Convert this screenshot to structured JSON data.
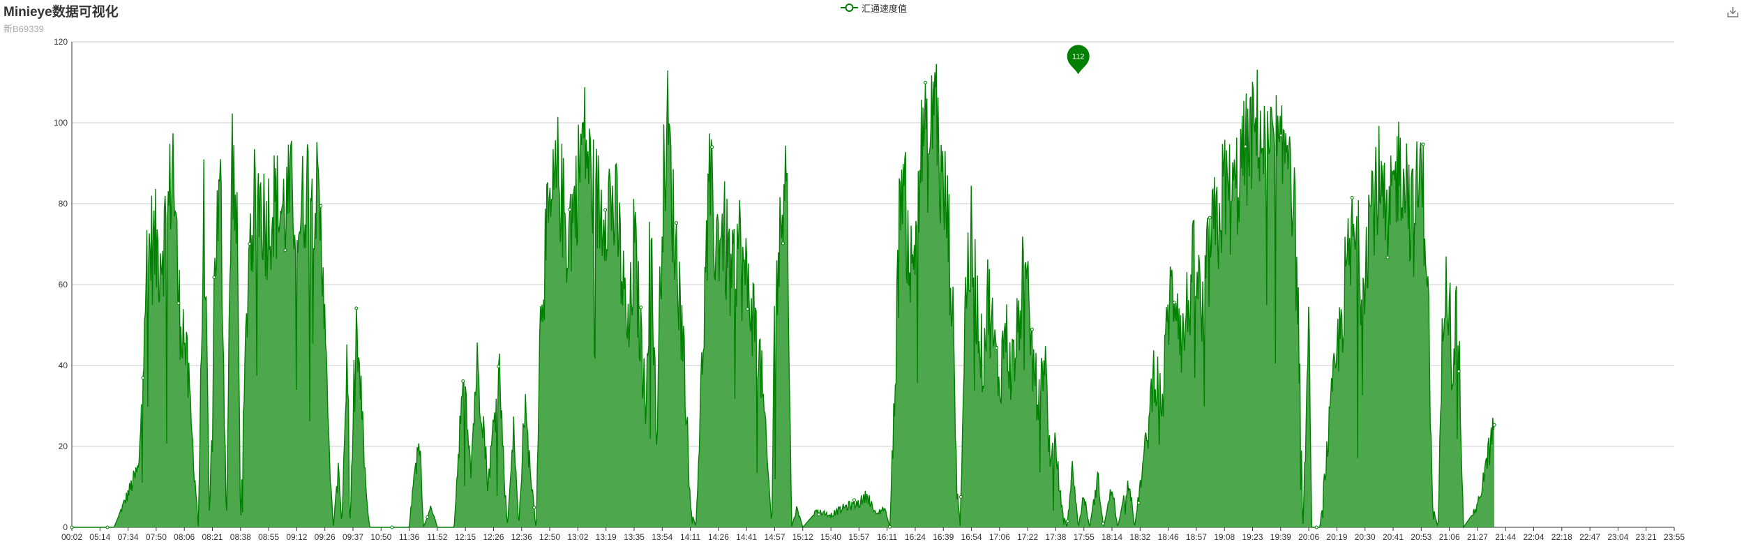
{
  "header": {
    "title": "Minieye数据可视化",
    "subtitle": "新B69339"
  },
  "legend": {
    "label": "汇通速度值"
  },
  "toolbox": {
    "icon": "download-icon"
  },
  "colors": {
    "series": "#008000",
    "area": "#4da74d",
    "grid": "#cccccc",
    "axis": "#333333"
  },
  "chart_data": {
    "type": "area",
    "title": "Minieye数据可视化",
    "subtitle": "新B69339",
    "series_name": "汇通速度值",
    "ylim": [
      0,
      120
    ],
    "y_ticks": [
      0,
      20,
      40,
      60,
      80,
      100,
      120
    ],
    "x_labels": [
      "00:02",
      "05:14",
      "07:34",
      "07:50",
      "08:06",
      "08:21",
      "08:38",
      "08:55",
      "09:12",
      "09:26",
      "09:37",
      "10:50",
      "11:36",
      "11:52",
      "12:15",
      "12:26",
      "12:36",
      "12:50",
      "13:02",
      "13:19",
      "13:35",
      "13:54",
      "14:11",
      "14:26",
      "14:41",
      "14:57",
      "15:12",
      "15:40",
      "15:57",
      "16:11",
      "16:24",
      "16:39",
      "16:54",
      "17:06",
      "17:22",
      "17:38",
      "17:55",
      "18:14",
      "18:32",
      "18:46",
      "18:57",
      "19:08",
      "19:23",
      "19:39",
      "20:06",
      "20:19",
      "20:30",
      "20:41",
      "20:53",
      "21:06",
      "21:27",
      "21:44",
      "22:04",
      "22:18",
      "22:47",
      "23:04",
      "23:21",
      "23:55"
    ],
    "max_point": {
      "label": "112",
      "value": 112,
      "x_label": "17:55"
    },
    "profile": [
      [
        0.0,
        0
      ],
      [
        1.5,
        0
      ],
      [
        2.4,
        15
      ],
      [
        2.6,
        60
      ],
      [
        2.8,
        70
      ],
      [
        3.1,
        68
      ],
      [
        3.4,
        75
      ],
      [
        3.6,
        92
      ],
      [
        3.8,
        55
      ],
      [
        4.0,
        48
      ],
      [
        4.2,
        30
      ],
      [
        4.4,
        10
      ],
      [
        4.5,
        0
      ],
      [
        4.7,
        80
      ],
      [
        4.9,
        0
      ],
      [
        5.1,
        70
      ],
      [
        5.3,
        82
      ],
      [
        5.5,
        0
      ],
      [
        5.7,
        95
      ],
      [
        5.9,
        65
      ],
      [
        6.0,
        0
      ],
      [
        6.3,
        70
      ],
      [
        6.6,
        84
      ],
      [
        6.9,
        75
      ],
      [
        7.2,
        80
      ],
      [
        7.5,
        78
      ],
      [
        7.8,
        82
      ],
      [
        8.1,
        75
      ],
      [
        8.4,
        86
      ],
      [
        8.7,
        82
      ],
      [
        9.0,
        60
      ],
      [
        9.1,
        25
      ],
      [
        9.3,
        0
      ],
      [
        9.5,
        15
      ],
      [
        9.6,
        0
      ],
      [
        9.8,
        45
      ],
      [
        9.9,
        0
      ],
      [
        10.1,
        50
      ],
      [
        10.3,
        30
      ],
      [
        10.5,
        5
      ],
      [
        10.6,
        0
      ],
      [
        11.2,
        0
      ],
      [
        12.0,
        0
      ],
      [
        12.2,
        15
      ],
      [
        12.4,
        20
      ],
      [
        12.5,
        0
      ],
      [
        12.8,
        5
      ],
      [
        13.0,
        0
      ],
      [
        13.6,
        0
      ],
      [
        13.8,
        25
      ],
      [
        14.0,
        35
      ],
      [
        14.2,
        15
      ],
      [
        14.4,
        40
      ],
      [
        14.6,
        30
      ],
      [
        14.8,
        10
      ],
      [
        15.0,
        25
      ],
      [
        15.2,
        40
      ],
      [
        15.4,
        10
      ],
      [
        15.5,
        0
      ],
      [
        15.7,
        25
      ],
      [
        15.9,
        0
      ],
      [
        16.1,
        30
      ],
      [
        16.3,
        15
      ],
      [
        16.5,
        0
      ],
      [
        16.7,
        60
      ],
      [
        17.0,
        75
      ],
      [
        17.3,
        88
      ],
      [
        17.6,
        72
      ],
      [
        17.9,
        80
      ],
      [
        18.2,
        98
      ],
      [
        18.5,
        85
      ],
      [
        18.8,
        78
      ],
      [
        19.1,
        82
      ],
      [
        19.4,
        75
      ],
      [
        19.6,
        60
      ],
      [
        19.8,
        45
      ],
      [
        20.0,
        70
      ],
      [
        20.2,
        50
      ],
      [
        20.4,
        30
      ],
      [
        20.6,
        75
      ],
      [
        20.8,
        20
      ],
      [
        21.0,
        80
      ],
      [
        21.2,
        100
      ],
      [
        21.4,
        75
      ],
      [
        21.6,
        60
      ],
      [
        21.8,
        40
      ],
      [
        22.0,
        5
      ],
      [
        22.2,
        0
      ],
      [
        22.5,
        55
      ],
      [
        22.7,
        85
      ],
      [
        22.9,
        70
      ],
      [
        23.1,
        75
      ],
      [
        23.3,
        68
      ],
      [
        23.5,
        60
      ],
      [
        23.7,
        72
      ],
      [
        23.9,
        62
      ],
      [
        24.1,
        58
      ],
      [
        24.3,
        50
      ],
      [
        24.5,
        40
      ],
      [
        24.7,
        20
      ],
      [
        24.9,
        0
      ],
      [
        25.0,
        55
      ],
      [
        25.2,
        70
      ],
      [
        25.4,
        100
      ],
      [
        25.6,
        0
      ],
      [
        25.8,
        5
      ],
      [
        26.0,
        0
      ],
      [
        26.5,
        4
      ],
      [
        27.0,
        3
      ],
      [
        27.5,
        5
      ],
      [
        28.0,
        6
      ],
      [
        28.3,
        8
      ],
      [
        28.6,
        3
      ],
      [
        28.9,
        5
      ],
      [
        29.1,
        0
      ],
      [
        29.3,
        40
      ],
      [
        29.5,
        90
      ],
      [
        29.7,
        75
      ],
      [
        29.9,
        60
      ],
      [
        30.1,
        85
      ],
      [
        30.3,
        98
      ],
      [
        30.5,
        90
      ],
      [
        30.7,
        112
      ],
      [
        30.9,
        85
      ],
      [
        31.1,
        80
      ],
      [
        31.3,
        60
      ],
      [
        31.5,
        10
      ],
      [
        31.6,
        0
      ],
      [
        31.8,
        60
      ],
      [
        32.0,
        70
      ],
      [
        32.2,
        55
      ],
      [
        32.4,
        40
      ],
      [
        32.6,
        58
      ],
      [
        32.8,
        45
      ],
      [
        33.0,
        35
      ],
      [
        33.2,
        50
      ],
      [
        33.4,
        38
      ],
      [
        33.6,
        45
      ],
      [
        33.8,
        60
      ],
      [
        34.0,
        55
      ],
      [
        34.2,
        40
      ],
      [
        34.4,
        30
      ],
      [
        34.6,
        45
      ],
      [
        34.8,
        15
      ],
      [
        35.0,
        20
      ],
      [
        35.2,
        5
      ],
      [
        35.4,
        0
      ],
      [
        35.6,
        15
      ],
      [
        35.8,
        0
      ],
      [
        36.0,
        8
      ],
      [
        36.2,
        0
      ],
      [
        36.5,
        12
      ],
      [
        36.7,
        0
      ],
      [
        37.0,
        10
      ],
      [
        37.2,
        0
      ],
      [
        37.6,
        12
      ],
      [
        37.8,
        0
      ],
      [
        38.1,
        15
      ],
      [
        38.3,
        25
      ],
      [
        38.5,
        40
      ],
      [
        38.8,
        30
      ],
      [
        39.0,
        55
      ],
      [
        39.3,
        60
      ],
      [
        39.5,
        45
      ],
      [
        39.8,
        60
      ],
      [
        40.0,
        65
      ],
      [
        40.2,
        50
      ],
      [
        40.5,
        70
      ],
      [
        40.8,
        75
      ],
      [
        41.0,
        85
      ],
      [
        41.3,
        80
      ],
      [
        41.6,
        90
      ],
      [
        41.9,
        95
      ],
      [
        42.2,
        100
      ],
      [
        42.5,
        90
      ],
      [
        42.8,
        96
      ],
      [
        43.0,
        88
      ],
      [
        43.3,
        100
      ],
      [
        43.6,
        60
      ],
      [
        43.8,
        0
      ],
      [
        44.0,
        50
      ],
      [
        44.1,
        0
      ],
      [
        44.4,
        0
      ],
      [
        44.8,
        30
      ],
      [
        45.0,
        42
      ],
      [
        45.3,
        60
      ],
      [
        45.6,
        72
      ],
      [
        45.9,
        62
      ],
      [
        46.2,
        80
      ],
      [
        46.5,
        85
      ],
      [
        46.8,
        70
      ],
      [
        47.1,
        88
      ],
      [
        47.4,
        90
      ],
      [
        47.7,
        75
      ],
      [
        48.0,
        88
      ],
      [
        48.2,
        70
      ],
      [
        48.4,
        5
      ],
      [
        48.6,
        0
      ],
      [
        48.8,
        60
      ],
      [
        48.9,
        70
      ],
      [
        49.1,
        40
      ],
      [
        49.3,
        55
      ],
      [
        49.5,
        0
      ],
      [
        50.0,
        5
      ],
      [
        50.3,
        15
      ],
      [
        50.6,
        25
      ]
    ]
  }
}
